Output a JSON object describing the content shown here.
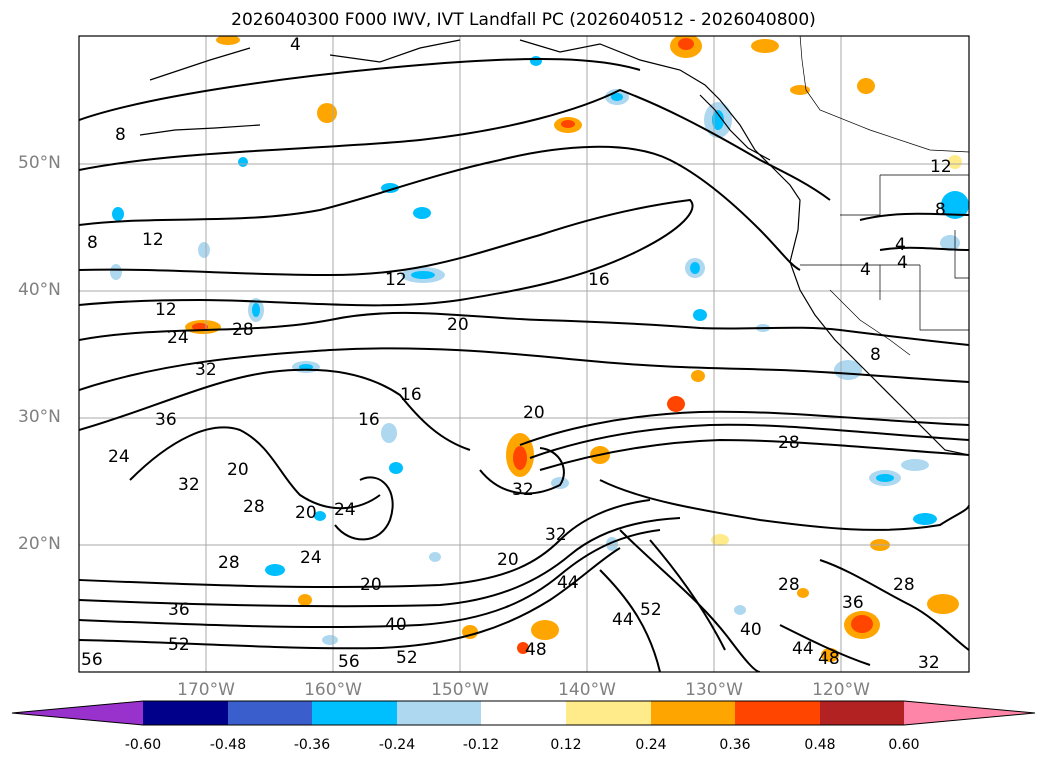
{
  "title": "2026040300 F000 IWV, IVT Landfall PC (2026040512 - 2026040800)",
  "latitude_labels": [
    "50°N",
    "40°N",
    "30°N",
    "20°N"
  ],
  "longitude_labels": [
    "170°W",
    "160°W",
    "150°W",
    "140°W",
    "130°W",
    "120°W"
  ],
  "colorbar": {
    "tick_labels": [
      "-0.60",
      "-0.48",
      "-0.36",
      "-0.24",
      "-0.12",
      "0.12",
      "0.24",
      "0.36",
      "0.48",
      "0.60"
    ],
    "colors": [
      "#9932cc",
      "#00008b",
      "#3a5fcd",
      "#00bfff",
      "#add8f0",
      "#ffffff",
      "#ffeb8a",
      "#ffa500",
      "#ff4500",
      "#b22222",
      "#ff85a8"
    ]
  },
  "contour_labels": [
    "4",
    "8",
    "12",
    "16",
    "20",
    "24",
    "28",
    "32",
    "36",
    "40",
    "44",
    "48",
    "52",
    "56"
  ],
  "colors": {
    "grid": "#a9a9a9",
    "contour": "#000000",
    "axis_labels": "#808080"
  }
}
